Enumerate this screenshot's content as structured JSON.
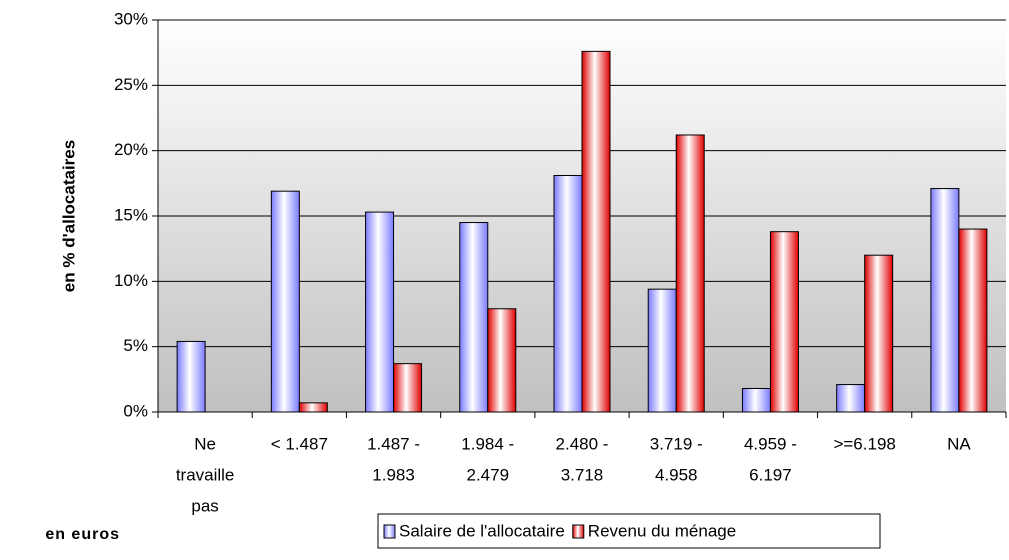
{
  "chart_data": {
    "type": "bar",
    "y_label": "en % d'allocataires",
    "x_label": "en euros",
    "categories": [
      [
        "Ne",
        "travaille",
        "pas"
      ],
      [
        "< 1.487"
      ],
      [
        "1.487 -",
        "1.983"
      ],
      [
        "1.984 -",
        "2.479"
      ],
      [
        "2.480 -",
        "3.718"
      ],
      [
        "3.719 -",
        "4.958"
      ],
      [
        "4.959 -",
        "6.197"
      ],
      [
        ">=6.198"
      ],
      [
        "NA"
      ]
    ],
    "series": [
      {
        "name": "Salaire de l'allocataire",
        "color": "#7b7bff",
        "values": [
          5.4,
          16.9,
          15.3,
          14.5,
          18.1,
          9.4,
          1.8,
          2.1,
          17.1
        ]
      },
      {
        "name": "Revenu du ménage",
        "color": "#e00000",
        "values": [
          0,
          0.7,
          3.7,
          7.9,
          27.6,
          21.2,
          13.8,
          12.0,
          14.0
        ]
      }
    ],
    "ylim": [
      0,
      30
    ],
    "yticks": [
      {
        "value": 0,
        "label": "0%"
      },
      {
        "value": 5,
        "label": "5%"
      },
      {
        "value": 10,
        "label": "10%"
      },
      {
        "value": 15,
        "label": "15%"
      },
      {
        "value": 20,
        "label": "20%"
      },
      {
        "value": 25,
        "label": "25%"
      },
      {
        "value": 30,
        "label": "30%"
      }
    ],
    "grid": true
  }
}
